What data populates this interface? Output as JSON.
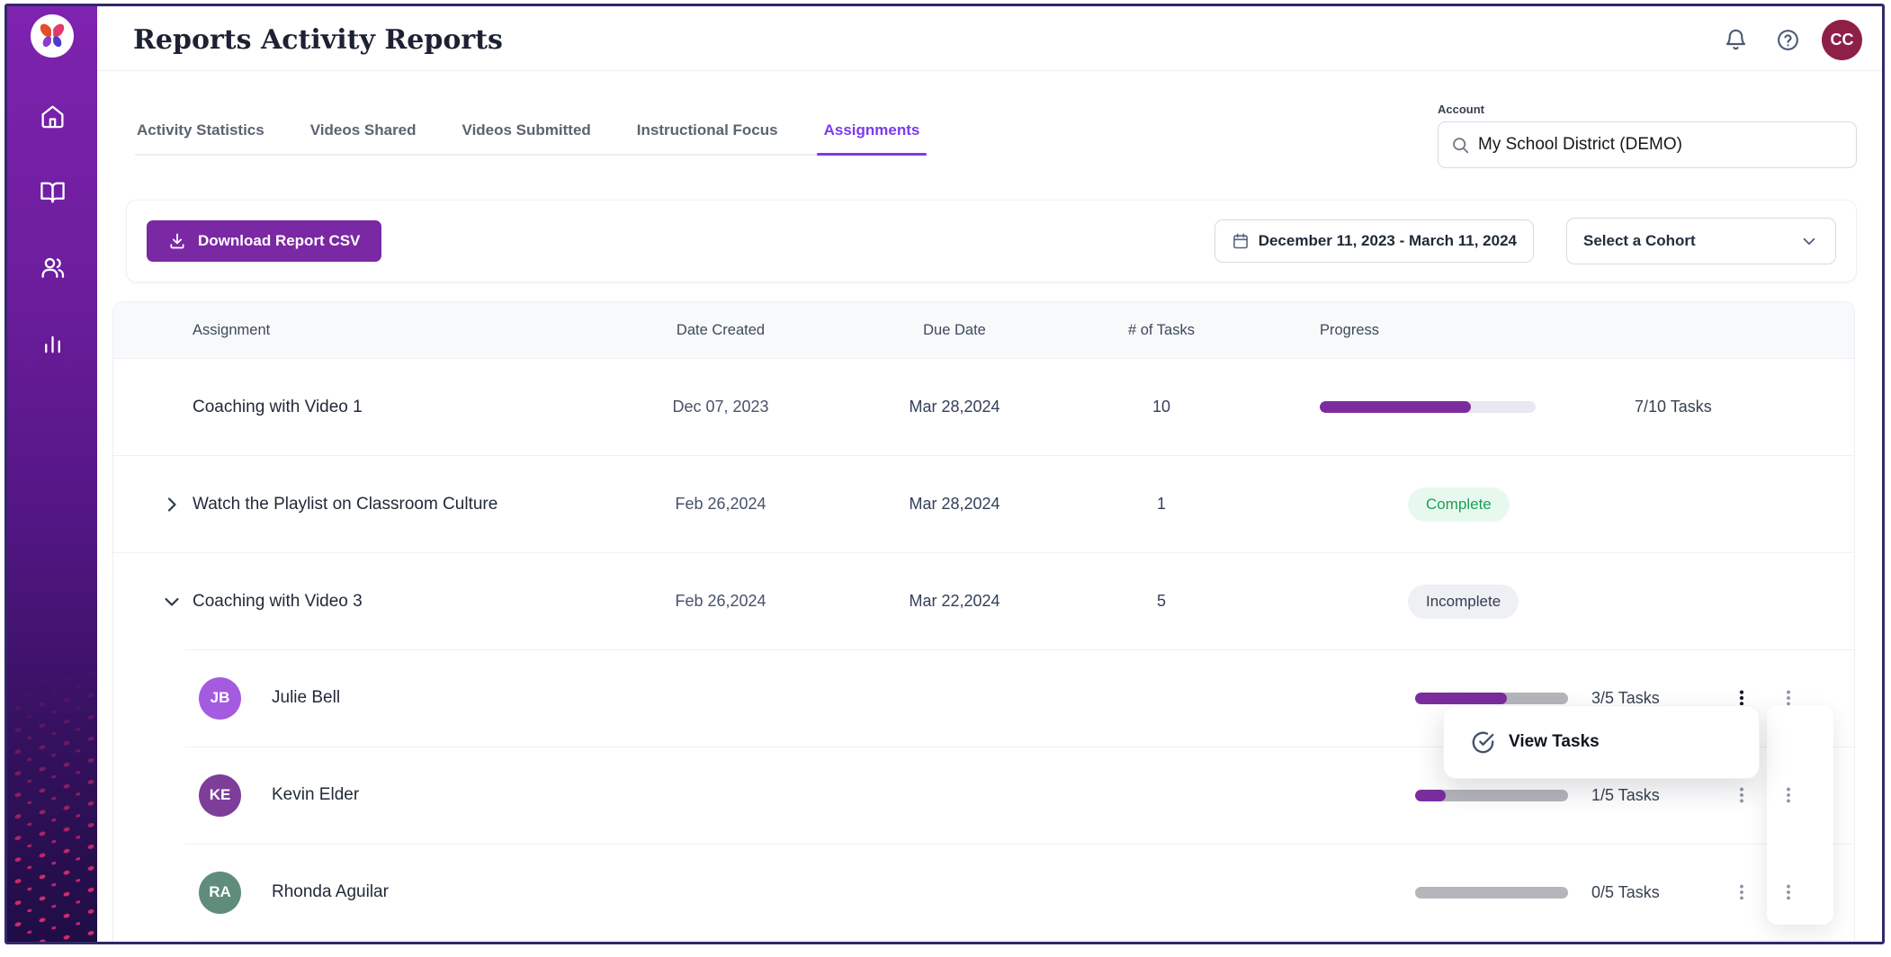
{
  "header": {
    "title_bold": "Reports",
    "title_rest": " Activity Reports",
    "avatar_initials": "CC"
  },
  "sidebar": {
    "icons": [
      "home-icon",
      "book-open-icon",
      "users-icon",
      "bar-chart-icon"
    ]
  },
  "tabs": [
    {
      "label": "Activity Statistics",
      "active": false
    },
    {
      "label": "Videos Shared",
      "active": false
    },
    {
      "label": "Videos Submitted",
      "active": false
    },
    {
      "label": "Instructional Focus",
      "active": false
    },
    {
      "label": "Assignments",
      "active": true
    }
  ],
  "account": {
    "label": "Account",
    "value": "My School District (DEMO)"
  },
  "toolbar": {
    "download_label": "Download Report CSV",
    "date_range": "December 11, 2023 - March 11, 2024",
    "cohort_value": "Select a Cohort"
  },
  "table": {
    "columns": [
      "Assignment",
      "Date Created",
      "Due Date",
      "# of Tasks",
      "Progress"
    ],
    "rows": [
      {
        "title": "Coaching with Video 1",
        "date_created": "Dec 07, 2023",
        "due_date": "Mar 28,2024",
        "num_tasks": "10",
        "progress_label": "7/10 Tasks",
        "progress_pct": 70
      },
      {
        "title": "Watch the Playlist on Classroom Culture",
        "date_created": "Feb 26,2024",
        "due_date": "Mar 28,2024",
        "num_tasks": "1",
        "status": "Complete"
      },
      {
        "title": "Coaching with Video 3",
        "date_created": "Feb 26,2024",
        "due_date": "Mar 22,2024",
        "num_tasks": "5",
        "status": "Incomplete"
      }
    ],
    "participants": [
      {
        "initials": "JB",
        "name": "Julie Bell",
        "avatar_color": "#A55BDF",
        "progress_label": "3/5 Tasks",
        "progress_pct": 60
      },
      {
        "initials": "KE",
        "name": "Kevin Elder",
        "avatar_color": "#7C3E99",
        "progress_label": "1/5 Tasks",
        "progress_pct": 20
      },
      {
        "initials": "RA",
        "name": "Rhonda Aguilar",
        "avatar_color": "#5F8C7B",
        "progress_label": "0/5 Tasks",
        "progress_pct": 0
      }
    ]
  },
  "context_menu": {
    "view_tasks_label": "View Tasks"
  },
  "colors": {
    "accent_purple": "#7B28A4",
    "progress_purple": "#7B2D9E",
    "tab_active": "#7C3AED",
    "complete_text": "#1D9E55",
    "complete_bg": "#E7F9EF",
    "incomplete_text": "#323E52",
    "incomplete_bg": "#EEF0F4",
    "avatar_cc_bg": "#8E1F47",
    "sidebar_top": "#7E23B0",
    "sidebar_bottom": "#1F0D45"
  }
}
